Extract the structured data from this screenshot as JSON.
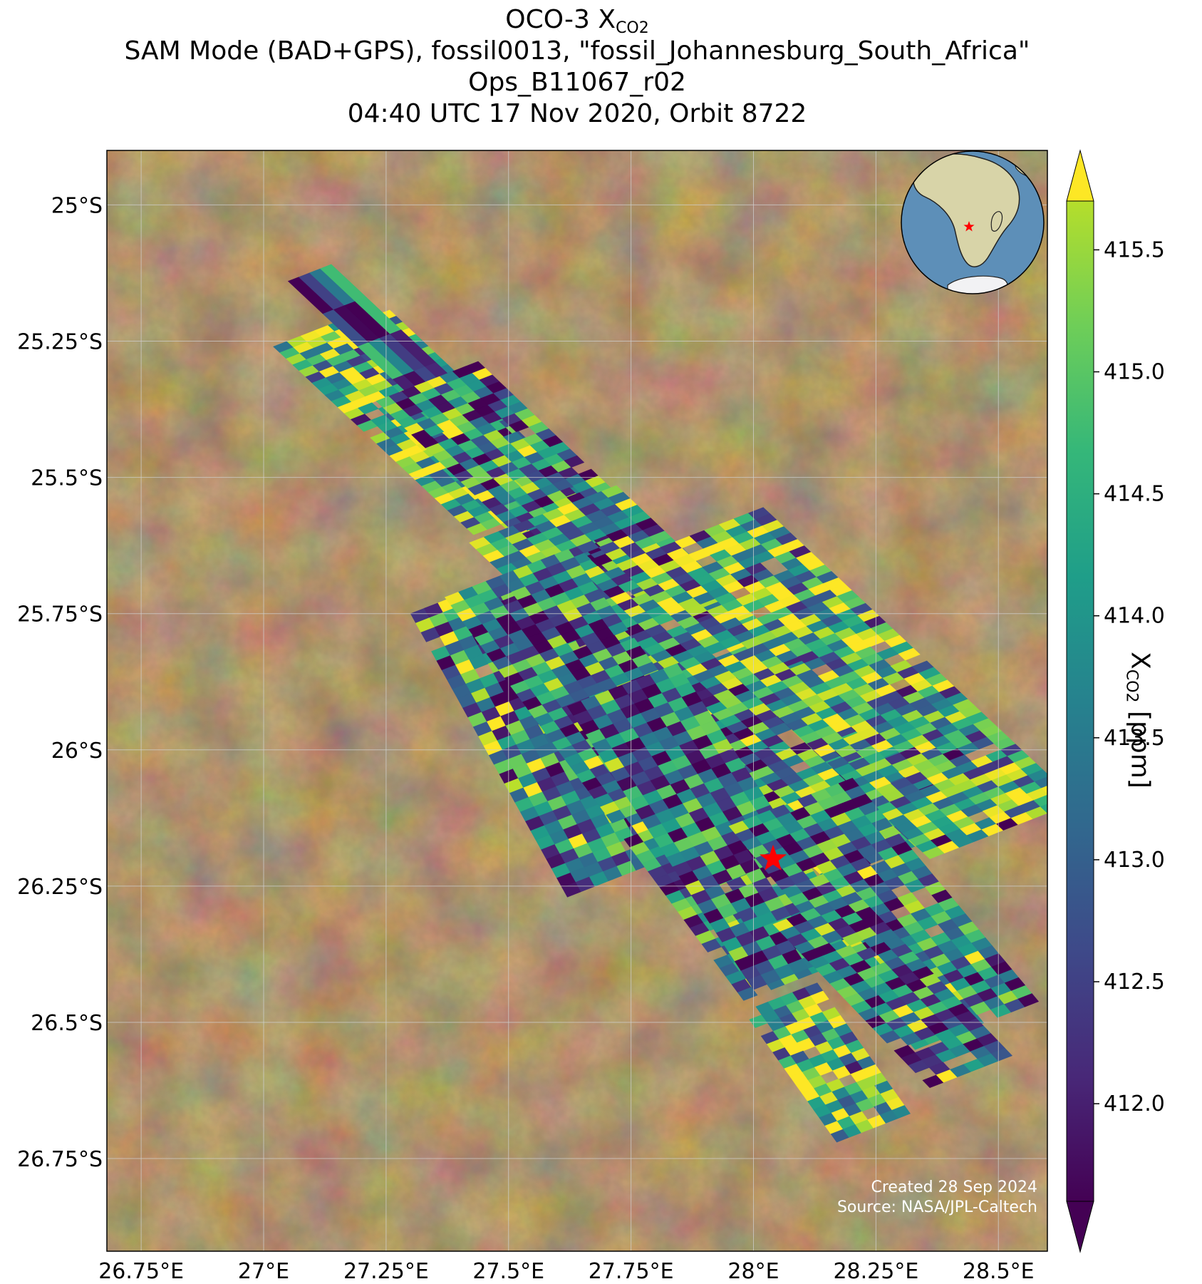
{
  "title": {
    "line1_main": "OCO-3 X",
    "line1_sub": "CO2",
    "line2": "SAM Mode (BAD+GPS), fossil0013, \"fossil_Johannesburg_South_Africa\"",
    "line3": "Ops_B11067_r02",
    "line4": "04:40 UTC 17 Nov 2020, Orbit 8722"
  },
  "map": {
    "lon_range": [
      26.68,
      28.6
    ],
    "lat_range": [
      -26.92,
      -24.9
    ],
    "lon_ticks": [
      26.75,
      27.0,
      27.25,
      27.5,
      27.75,
      28.0,
      28.25,
      28.5
    ],
    "lon_tick_labels": [
      "26.75°E",
      "27°E",
      "27.25°E",
      "27.5°E",
      "27.75°E",
      "28°E",
      "28.25°E",
      "28.5°E"
    ],
    "lat_ticks": [
      -25.0,
      -25.25,
      -25.5,
      -25.75,
      -26.0,
      -26.25,
      -26.5,
      -26.75
    ],
    "lat_tick_labels": [
      "25°S",
      "25.25°S",
      "25.5°S",
      "25.75°S",
      "26°S",
      "26.25°S",
      "26.5°S",
      "26.75°S"
    ],
    "grid": true,
    "target": {
      "lon": 28.04,
      "lat": -26.2
    },
    "credit_line1": "Created 28 Sep 2024",
    "credit_line2": "Source: NASA/JPL-Caltech"
  },
  "chart_data": {
    "type": "heatmap",
    "colormap": "viridis",
    "vmin": 411.6,
    "vmax": 415.7,
    "colorbar_ticks": [
      412.0,
      412.5,
      413.0,
      413.5,
      414.0,
      414.5,
      415.0,
      415.5
    ],
    "colorbar_tick_labels": [
      "412.0",
      "412.5",
      "413.0",
      "413.5",
      "414.0",
      "414.5",
      "415.0",
      "415.5"
    ],
    "colorbar_label_main": "X",
    "colorbar_label_sub": "CO2",
    "colorbar_label_unit": " [ppm]",
    "colorbar_extend": "both",
    "swaths": [
      {
        "start": [
          27.02,
          -25.26
        ],
        "end": [
          27.6,
          -25.75
        ],
        "rows": 44,
        "cols": 8,
        "dlon": 0.028,
        "dlat": 0.0,
        "seed": 11,
        "mean": 414.6
      },
      {
        "start": [
          27.05,
          -25.14
        ],
        "end": [
          27.62,
          -25.62
        ],
        "rows": 8,
        "cols": 4,
        "dlon": 0.022,
        "dlat": 0.0,
        "seed": 7,
        "mean": 413.0
      },
      {
        "start": [
          27.23,
          -25.36
        ],
        "end": [
          27.72,
          -25.78
        ],
        "rows": 34,
        "cols": 8,
        "dlon": 0.026,
        "dlat": 0.0,
        "seed": 19,
        "mean": 413.4
      },
      {
        "start": [
          27.42,
          -25.62
        ],
        "end": [
          28.15,
          -26.24
        ],
        "rows": 52,
        "cols": 10,
        "dlon": 0.03,
        "dlat": 0.0,
        "seed": 23,
        "mean": 413.8
      },
      {
        "start": [
          27.72,
          -25.66
        ],
        "end": [
          28.36,
          -26.2
        ],
        "rows": 46,
        "cols": 10,
        "dlon": 0.03,
        "dlat": 0.0,
        "seed": 29,
        "mean": 414.1
      },
      {
        "start": [
          27.3,
          -25.75
        ],
        "end": [
          27.62,
          -26.27
        ],
        "rows": 30,
        "cols": 9,
        "dlon": 0.028,
        "dlat": 0.0,
        "seed": 31,
        "mean": 413.6
      },
      {
        "start": [
          27.37,
          -25.72
        ],
        "end": [
          27.98,
          -26.46
        ],
        "rows": 50,
        "cols": 9,
        "dlon": 0.028,
        "dlat": 0.0,
        "seed": 37,
        "mean": 413.3
      },
      {
        "start": [
          27.62,
          -25.92
        ],
        "end": [
          28.0,
          -26.44
        ],
        "rows": 30,
        "cols": 8,
        "dlon": 0.028,
        "dlat": 0.0,
        "seed": 41,
        "mean": 413.0
      },
      {
        "start": [
          27.95,
          -26.14
        ],
        "end": [
          28.33,
          -26.55
        ],
        "rows": 28,
        "cols": 9,
        "dlon": 0.028,
        "dlat": 0.0,
        "seed": 43,
        "mean": 413.5
      },
      {
        "start": [
          28.04,
          -26.32
        ],
        "end": [
          28.36,
          -26.62
        ],
        "rows": 22,
        "cols": 6,
        "dlon": 0.028,
        "dlat": 0.0,
        "seed": 47,
        "mean": 413.2
      },
      {
        "start": [
          27.98,
          -26.48
        ],
        "end": [
          28.17,
          -26.72
        ],
        "rows": 16,
        "cols": 6,
        "dlon": 0.025,
        "dlat": 0.0,
        "seed": 53,
        "mean": 414.4
      }
    ]
  },
  "inset_globe": {
    "star_label": ""
  }
}
